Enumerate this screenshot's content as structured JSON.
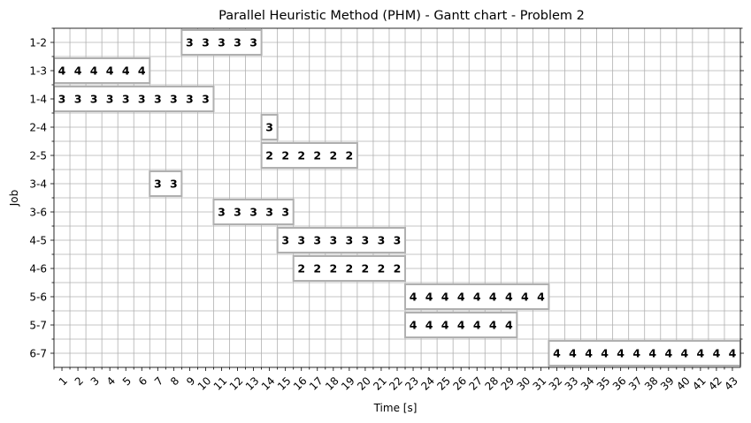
{
  "chart_data": {
    "type": "gantt",
    "title": "Parallel Heuristic Method (PHM) - Gantt chart - Problem 2",
    "xlabel": "Time [s]",
    "ylabel": "Job",
    "grid": true,
    "x_ticks": [
      "1",
      "2",
      "3",
      "4",
      "5",
      "6",
      "7",
      "8",
      "9",
      "10",
      "11",
      "12",
      "13",
      "14",
      "15",
      "16",
      "17",
      "18",
      "19",
      "20",
      "21",
      "22",
      "23",
      "24",
      "25",
      "26",
      "27",
      "28",
      "29",
      "30",
      "31",
      "32",
      "33",
      "34",
      "35",
      "36",
      "37",
      "38",
      "39",
      "40",
      "41",
      "42",
      "43"
    ],
    "jobs": [
      "1-2",
      "1-3",
      "1-4",
      "2-4",
      "2-5",
      "3-4",
      "3-6",
      "4-5",
      "4-6",
      "5-6",
      "5-7",
      "6-7"
    ],
    "tasks": [
      {
        "job": "1-2",
        "start": 9,
        "end": 13,
        "label": "3"
      },
      {
        "job": "1-3",
        "start": 1,
        "end": 6,
        "label": "4"
      },
      {
        "job": "1-4",
        "start": 1,
        "end": 10,
        "label": "3"
      },
      {
        "job": "2-4",
        "start": 14,
        "end": 14,
        "label": "3"
      },
      {
        "job": "2-5",
        "start": 14,
        "end": 19,
        "label": "2"
      },
      {
        "job": "3-4",
        "start": 7,
        "end": 8,
        "label": "3"
      },
      {
        "job": "3-6",
        "start": 11,
        "end": 15,
        "label": "3"
      },
      {
        "job": "4-5",
        "start": 15,
        "end": 22,
        "label": "3"
      },
      {
        "job": "4-6",
        "start": 16,
        "end": 22,
        "label": "2"
      },
      {
        "job": "5-6",
        "start": 23,
        "end": 31,
        "label": "4"
      },
      {
        "job": "5-7",
        "start": 23,
        "end": 29,
        "label": "4"
      },
      {
        "job": "6-7",
        "start": 32,
        "end": 43,
        "label": "4"
      }
    ]
  }
}
